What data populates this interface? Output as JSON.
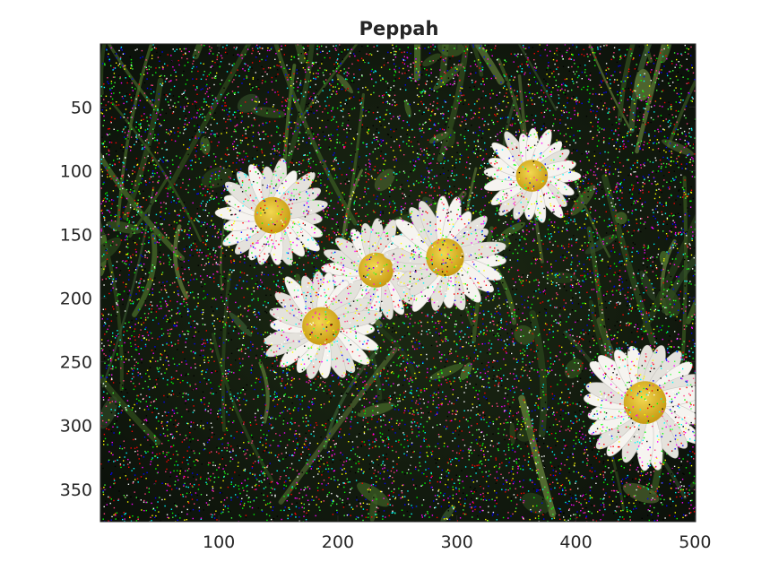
{
  "figure": {
    "title": "Peppah",
    "image_description_key": "daisies-with-salt-and-pepper-noise"
  },
  "axes": {
    "xlim": [
      1,
      500
    ],
    "ylim": [
      1,
      375
    ],
    "y_direction": "reversed",
    "xticks": [
      100,
      200,
      300,
      400,
      500
    ],
    "yticks": [
      50,
      100,
      150,
      200,
      250,
      300,
      350
    ],
    "xtick_labels": [
      "100",
      "200",
      "300",
      "400",
      "500"
    ],
    "ytick_labels": [
      "50",
      "100",
      "150",
      "200",
      "250",
      "300",
      "350"
    ],
    "grid": false
  },
  "colors": {
    "axis": "#262626",
    "background": "#ffffff",
    "petal": "#f4f2ee",
    "center": "#e0c021",
    "foliage": "#3a5a22",
    "dark": "#0c120a"
  },
  "image": {
    "flowers": [
      {
        "cx": 145,
        "cy": 135,
        "r": 48,
        "petals": 22
      },
      {
        "cx": 232,
        "cy": 178,
        "r": 46,
        "petals": 20
      },
      {
        "cx": 290,
        "cy": 168,
        "r": 50,
        "petals": 22
      },
      {
        "cx": 186,
        "cy": 222,
        "r": 50,
        "petals": 22
      },
      {
        "cx": 363,
        "cy": 104,
        "r": 42,
        "petals": 20
      },
      {
        "cx": 458,
        "cy": 282,
        "r": 56,
        "petals": 24
      }
    ],
    "noise_density": 0.14
  }
}
